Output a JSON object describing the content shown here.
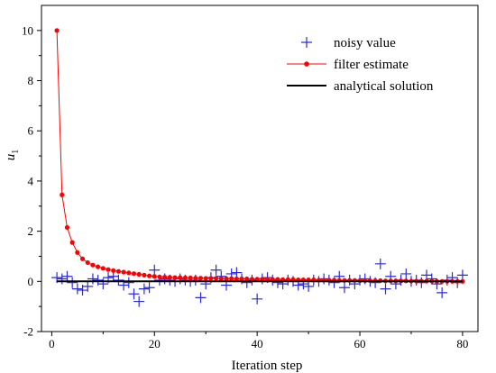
{
  "chart_data": {
    "type": "line",
    "xlabel": "Iteration step",
    "ylabel": "u",
    "ylabel_subscript": "1",
    "xlim": [
      -2,
      83
    ],
    "ylim": [
      -2,
      11
    ],
    "xticks": [
      0,
      20,
      40,
      60,
      80
    ],
    "yticks": [
      -2,
      0,
      2,
      4,
      6,
      8,
      10
    ],
    "legend_position": "top-right",
    "grid": false,
    "series": [
      {
        "name": "noisy value",
        "style": "scatter-plus",
        "color": "#2a2ae0",
        "x": [
          1,
          2,
          3,
          4,
          5,
          6,
          7,
          8,
          9,
          10,
          11,
          12,
          13,
          14,
          15,
          16,
          17,
          18,
          19,
          20,
          21,
          22,
          23,
          24,
          25,
          26,
          27,
          28,
          29,
          30,
          31,
          32,
          33,
          34,
          35,
          36,
          37,
          38,
          39,
          40,
          41,
          42,
          43,
          44,
          45,
          46,
          47,
          48,
          49,
          50,
          51,
          52,
          53,
          54,
          55,
          56,
          57,
          58,
          59,
          60,
          61,
          62,
          63,
          64,
          65,
          66,
          67,
          68,
          69,
          70,
          71,
          72,
          73,
          74,
          75,
          76,
          77,
          78,
          79,
          80
        ],
        "y": [
          0.15,
          0.1,
          0.2,
          -0.05,
          -0.3,
          -0.35,
          -0.2,
          0.1,
          0.05,
          -0.1,
          0.15,
          0.2,
          0.05,
          -0.15,
          -0.05,
          -0.5,
          -0.8,
          -0.3,
          -0.25,
          0.45,
          0.05,
          0.1,
          0.05,
          0.0,
          0.1,
          0.05,
          0.0,
          0.05,
          -0.65,
          -0.1,
          0.15,
          0.45,
          0.2,
          -0.15,
          0.3,
          0.35,
          0.1,
          -0.05,
          0.05,
          -0.7,
          0.1,
          0.15,
          0.05,
          -0.05,
          -0.1,
          0.05,
          0.0,
          -0.15,
          -0.1,
          -0.2,
          0.05,
          0.0,
          0.1,
          0.05,
          -0.05,
          0.2,
          -0.25,
          0.05,
          -0.1,
          0.05,
          0.1,
          0.0,
          -0.05,
          0.7,
          -0.3,
          0.2,
          -0.1,
          0.05,
          0.3,
          0.0,
          0.05,
          -0.05,
          0.25,
          0.1,
          -0.1,
          -0.45,
          0.05,
          0.15,
          -0.05,
          0.25
        ]
      },
      {
        "name": "filter estimate",
        "style": "line-markers",
        "color": "#ff0000",
        "x": [
          1,
          2,
          3,
          4,
          5,
          6,
          7,
          8,
          9,
          10,
          11,
          12,
          13,
          14,
          15,
          16,
          17,
          18,
          19,
          20,
          21,
          22,
          23,
          24,
          25,
          26,
          27,
          28,
          29,
          30,
          31,
          32,
          33,
          34,
          35,
          36,
          37,
          38,
          39,
          40,
          41,
          42,
          43,
          44,
          45,
          46,
          47,
          48,
          49,
          50,
          51,
          52,
          53,
          54,
          55,
          56,
          57,
          58,
          59,
          60,
          61,
          62,
          63,
          64,
          65,
          66,
          67,
          68,
          69,
          70,
          71,
          72,
          73,
          74,
          75,
          76,
          77,
          78,
          79,
          80
        ],
        "y": [
          10.0,
          3.45,
          2.15,
          1.55,
          1.15,
          0.9,
          0.75,
          0.65,
          0.58,
          0.52,
          0.47,
          0.43,
          0.4,
          0.37,
          0.34,
          0.31,
          0.28,
          0.25,
          0.22,
          0.2,
          0.18,
          0.17,
          0.16,
          0.15,
          0.15,
          0.14,
          0.14,
          0.13,
          0.13,
          0.12,
          0.12,
          0.12,
          0.11,
          0.11,
          0.11,
          0.1,
          0.1,
          0.1,
          0.09,
          0.09,
          0.09,
          0.08,
          0.08,
          0.08,
          0.07,
          0.07,
          0.07,
          0.06,
          0.06,
          0.06,
          0.06,
          0.05,
          0.05,
          0.05,
          0.05,
          0.04,
          0.04,
          0.04,
          0.04,
          0.03,
          0.03,
          0.03,
          0.03,
          0.03,
          0.02,
          0.02,
          0.02,
          0.02,
          0.02,
          0.01,
          0.01,
          0.01,
          0.01,
          0.01,
          0.0,
          0.0,
          0.0,
          0.0,
          0.0,
          0.0
        ]
      },
      {
        "name": "analytical solution",
        "style": "line",
        "color": "#000000",
        "x": [
          1,
          80
        ],
        "y": [
          0,
          0
        ]
      }
    ]
  }
}
